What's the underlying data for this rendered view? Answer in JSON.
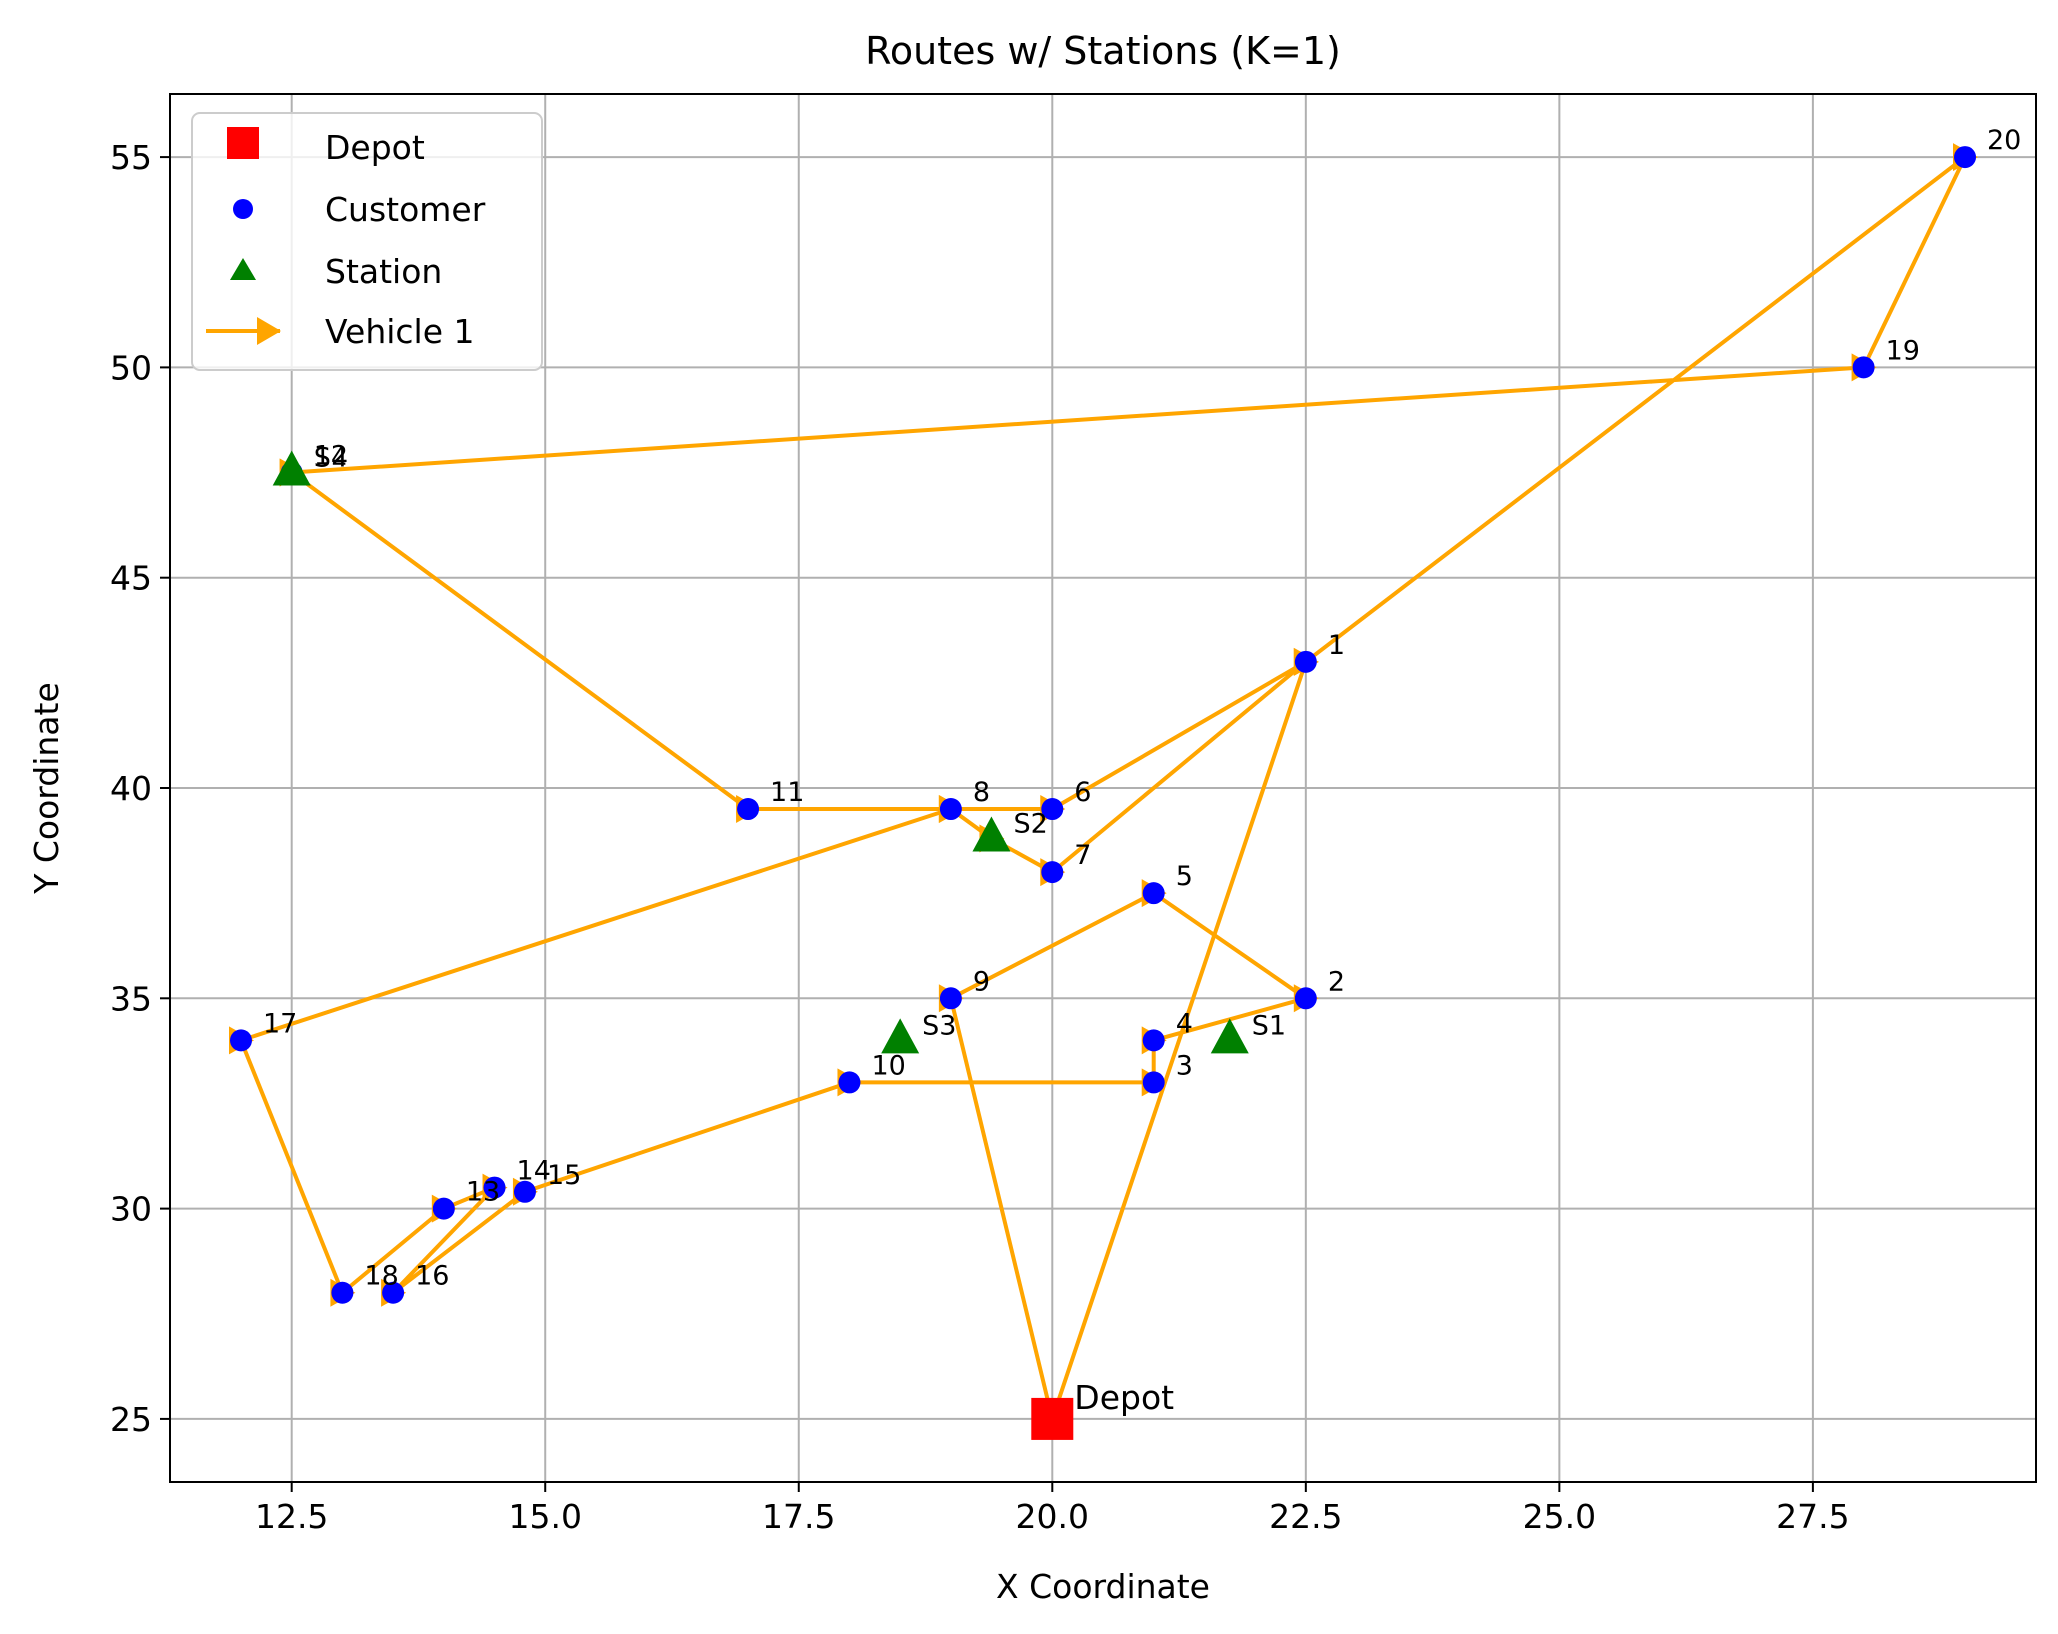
{
  "chart_data": {
    "type": "scatter",
    "title": "Routes w/ Stations (K=1)",
    "xlabel": "X Coordinate",
    "ylabel": "Y Coordinate",
    "xlim": [
      11.3,
      29.7
    ],
    "ylim": [
      23.5,
      56.5
    ],
    "grid": true,
    "legend_location": "top-left",
    "x_ticks": [
      12.5,
      15.0,
      17.5,
      20.0,
      22.5,
      25.0,
      27.5
    ],
    "x_tick_labels": [
      "12.5",
      "15.0",
      "17.5",
      "20.0",
      "22.5",
      "25.0",
      "27.5"
    ],
    "y_ticks": [
      25,
      30,
      35,
      40,
      45,
      50,
      55
    ],
    "y_tick_labels": [
      "25",
      "30",
      "35",
      "40",
      "45",
      "50",
      "55"
    ],
    "colors": {
      "depot": "#ff0000",
      "customer": "#0000ff",
      "station": "#008000",
      "route": "#ffa500",
      "grid": "#b0b0b0"
    },
    "legend": [
      {
        "key": "depot",
        "label": "Depot"
      },
      {
        "key": "customer",
        "label": "Customer"
      },
      {
        "key": "station",
        "label": "Station"
      },
      {
        "key": "route",
        "label": "Vehicle 1"
      }
    ],
    "depot": {
      "label": "Depot",
      "x": 20.0,
      "y": 25.0
    },
    "customers": [
      {
        "id": "1",
        "x": 22.5,
        "y": 43.0
      },
      {
        "id": "2",
        "x": 22.5,
        "y": 35.0
      },
      {
        "id": "3",
        "x": 21.0,
        "y": 33.0
      },
      {
        "id": "4",
        "x": 21.0,
        "y": 34.0
      },
      {
        "id": "5",
        "x": 21.0,
        "y": 37.5
      },
      {
        "id": "6",
        "x": 20.0,
        "y": 39.5
      },
      {
        "id": "7",
        "x": 20.0,
        "y": 38.0
      },
      {
        "id": "8",
        "x": 19.0,
        "y": 39.5
      },
      {
        "id": "9",
        "x": 19.0,
        "y": 35.0
      },
      {
        "id": "10",
        "x": 18.0,
        "y": 33.0
      },
      {
        "id": "11",
        "x": 17.0,
        "y": 39.5
      },
      {
        "id": "12",
        "x": 12.5,
        "y": 47.5
      },
      {
        "id": "13",
        "x": 14.0,
        "y": 30.0
      },
      {
        "id": "14",
        "x": 14.5,
        "y": 30.5
      },
      {
        "id": "15",
        "x": 14.8,
        "y": 30.4
      },
      {
        "id": "16",
        "x": 13.5,
        "y": 28.0
      },
      {
        "id": "17",
        "x": 12.0,
        "y": 34.0
      },
      {
        "id": "18",
        "x": 13.0,
        "y": 28.0
      },
      {
        "id": "19",
        "x": 28.0,
        "y": 50.0
      },
      {
        "id": "20",
        "x": 29.0,
        "y": 55.0
      }
    ],
    "stations": [
      {
        "id": "S1",
        "x": 21.75,
        "y": 34.0
      },
      {
        "id": "S2",
        "x": 19.4,
        "y": 38.8
      },
      {
        "id": "S3",
        "x": 18.5,
        "y": 34.0
      },
      {
        "id": "S4",
        "x": 12.5,
        "y": 47.5
      }
    ],
    "route": {
      "name": "Vehicle 1",
      "sequence": [
        "Depot",
        "1",
        "20",
        "19",
        "S4",
        "12",
        "11",
        "8",
        "6",
        "1",
        "7",
        "S2",
        "8",
        "17",
        "18",
        "13",
        "14",
        "16",
        "15",
        "10",
        "3",
        "4",
        "2",
        "5",
        "9",
        "Depot"
      ],
      "path": [
        [
          20.0,
          25.0
        ],
        [
          22.5,
          43.0
        ],
        [
          29.0,
          55.0
        ],
        [
          28.0,
          50.0
        ],
        [
          12.5,
          47.5
        ],
        [
          12.5,
          47.5
        ],
        [
          17.0,
          39.5
        ],
        [
          19.0,
          39.5
        ],
        [
          20.0,
          39.5
        ],
        [
          22.5,
          43.0
        ],
        [
          20.0,
          38.0
        ],
        [
          19.4,
          38.8
        ],
        [
          19.0,
          39.5
        ],
        [
          12.0,
          34.0
        ],
        [
          13.0,
          28.0
        ],
        [
          14.0,
          30.0
        ],
        [
          14.5,
          30.5
        ],
        [
          13.5,
          28.0
        ],
        [
          14.8,
          30.4
        ],
        [
          18.0,
          33.0
        ],
        [
          21.0,
          33.0
        ],
        [
          21.0,
          34.0
        ],
        [
          22.5,
          35.0
        ],
        [
          21.0,
          37.5
        ],
        [
          19.0,
          35.0
        ],
        [
          20.0,
          25.0
        ]
      ]
    }
  }
}
